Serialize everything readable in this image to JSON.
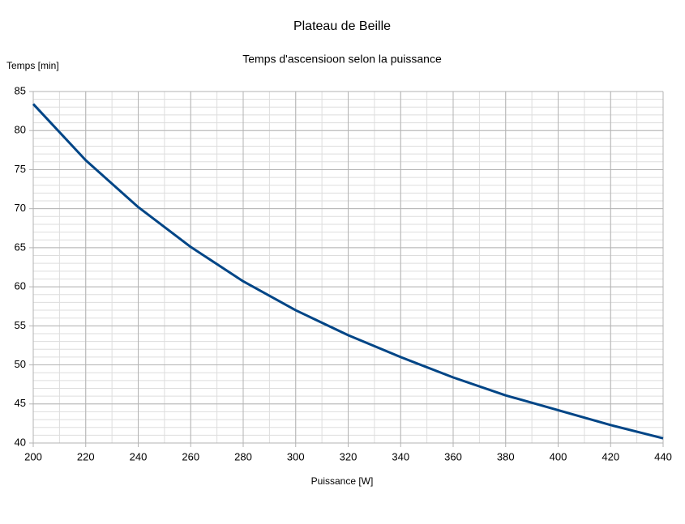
{
  "chart_data": {
    "type": "line",
    "title": "Plateau de Beille",
    "subtitle": "Temps d'ascensioon selon la puissance",
    "x_label": "Puissance [W]",
    "y_label": "Temps [min]",
    "x": [
      200,
      220,
      240,
      260,
      280,
      300,
      320,
      340,
      360,
      380,
      400,
      420,
      440
    ],
    "series": [
      {
        "name": "Temps",
        "color": "#004586",
        "values": [
          83.4,
          76.2,
          70.2,
          65.1,
          60.7,
          57.0,
          53.8,
          51.0,
          48.4,
          46.1,
          44.2,
          42.3,
          40.6
        ]
      }
    ],
    "xlim": [
      200,
      440
    ],
    "xticks": [
      200,
      220,
      240,
      260,
      280,
      300,
      320,
      340,
      360,
      380,
      400,
      420,
      440
    ],
    "ylim": [
      40,
      85
    ],
    "yticks": [
      40,
      45,
      50,
      55,
      60,
      65,
      70,
      75,
      80,
      85
    ],
    "grid": true,
    "minor_grid": {
      "x": 10,
      "y": 1
    }
  }
}
